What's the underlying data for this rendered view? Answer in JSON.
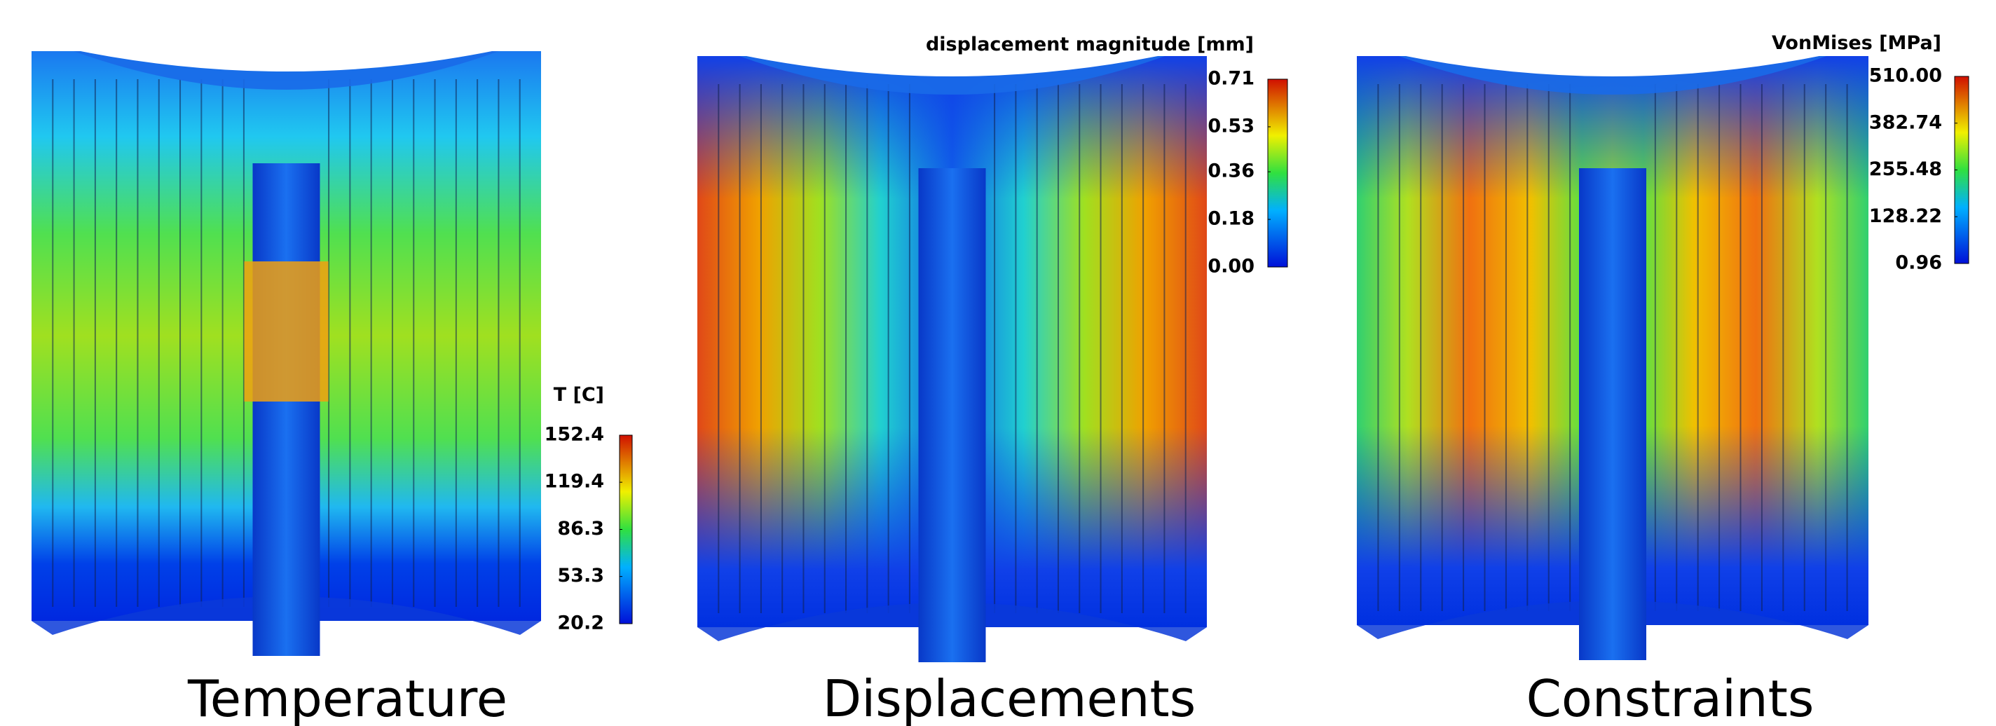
{
  "panels": [
    {
      "title": "Temperature",
      "legend": {
        "title": "T [C]",
        "ticks": [
          152.4,
          119.4,
          86.3,
          53.3,
          20.2
        ]
      }
    },
    {
      "title": "Displacements",
      "legend": {
        "title": "displacement magnitude [mm]",
        "ticks": [
          0.71,
          0.53,
          0.36,
          0.18,
          {
            "value": 0,
            "label": "0.00"
          }
        ]
      }
    },
    {
      "title": "Constraints",
      "legend": {
        "title": "VonMises [MPa]",
        "ticks": [
          {
            "value": 510,
            "label": "510.00"
          },
          382.74,
          255.48,
          128.22,
          0.96
        ]
      }
    }
  ]
}
